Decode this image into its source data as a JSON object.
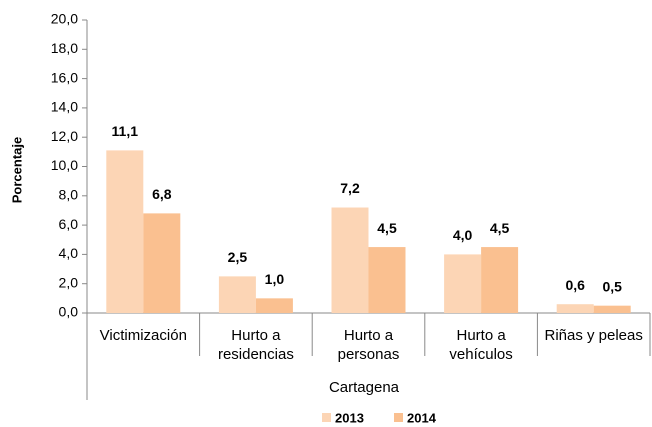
{
  "chart_data": {
    "type": "bar",
    "y_label": "Porcentaje",
    "x_label": "Cartagena",
    "categories": [
      "Victimización",
      "Hurto a residencias",
      "Hurto a personas",
      "Hurto a vehículos",
      "Riñas y peleas"
    ],
    "series": [
      {
        "name": "2013",
        "color": "#fcd5b5",
        "values": [
          11.1,
          2.5,
          7.2,
          4.0,
          0.6
        ],
        "value_labels": [
          "11,1",
          "2,5",
          "7,2",
          "4,0",
          "0,6"
        ]
      },
      {
        "name": "2014",
        "color": "#fac090",
        "values": [
          6.8,
          1.0,
          4.5,
          4.5,
          0.5
        ],
        "value_labels": [
          "6,8",
          "1,0",
          "4,5",
          "4,5",
          "0,5"
        ]
      }
    ],
    "ylim": [
      0,
      20
    ],
    "yticks": [
      {
        "value": 0,
        "label": "0,0"
      },
      {
        "value": 2,
        "label": "2,0"
      },
      {
        "value": 4,
        "label": "4,0"
      },
      {
        "value": 6,
        "label": "6,0"
      },
      {
        "value": 8,
        "label": "8,0"
      },
      {
        "value": 10,
        "label": "10,0"
      },
      {
        "value": 12,
        "label": "12,0"
      },
      {
        "value": 14,
        "label": "14,0"
      },
      {
        "value": 16,
        "label": "16,0"
      },
      {
        "value": 18,
        "label": "18,0"
      },
      {
        "value": 20,
        "label": "20,0"
      }
    ],
    "grid": false,
    "legend": "bottom"
  }
}
